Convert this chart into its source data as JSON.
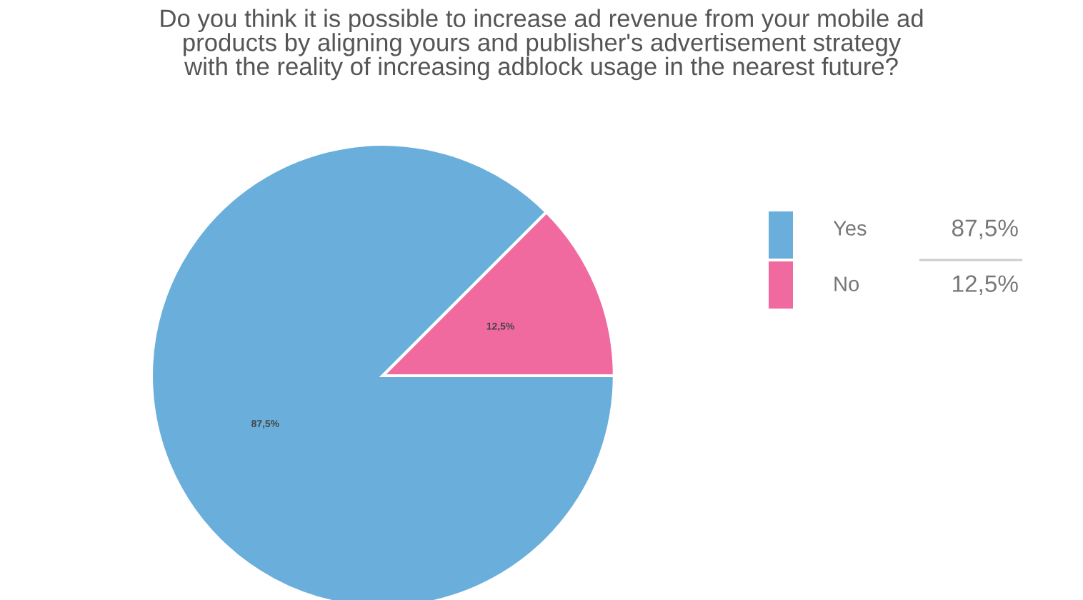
{
  "chart_data": {
    "type": "pie",
    "title": "Do you think it is possible to increase ad revenue from your mobile ad\nproducts by aligning yours and publisher's advertisement strategy\nwith the reality of increasing adblock usage in the nearest future?",
    "categories": [
      "Yes",
      "No"
    ],
    "values": [
      87.5,
      12.5
    ],
    "value_labels": [
      "87,5%",
      "12,5%"
    ],
    "colors": [
      "#6aafdb",
      "#f06aa0"
    ],
    "legend": "right"
  }
}
